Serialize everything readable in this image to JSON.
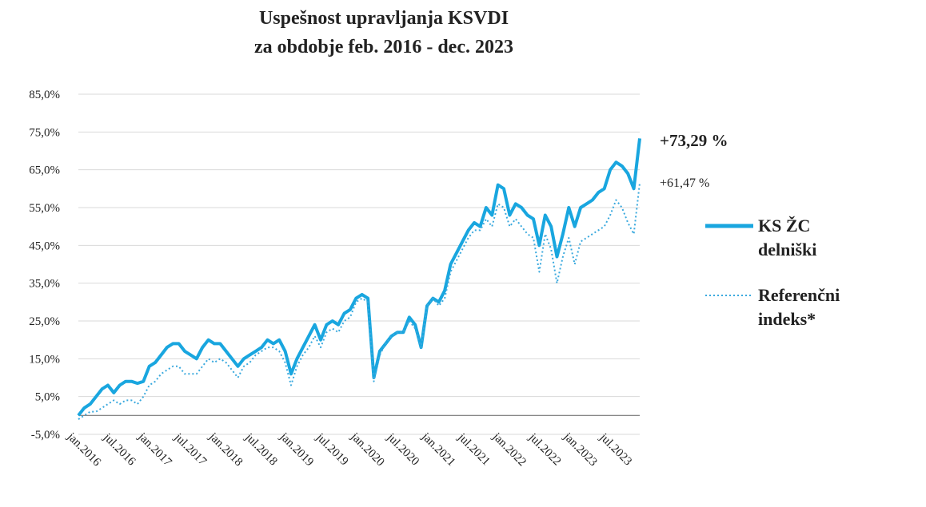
{
  "chart_data": {
    "type": "line",
    "title": [
      "Uspešnost upravljanja KSVDI",
      "za obdobje feb. 2016 - dec. 2023"
    ],
    "categories": [
      "jan.2016",
      null,
      null,
      null,
      null,
      null,
      "jul.2016",
      null,
      null,
      null,
      null,
      null,
      "jan.2017",
      null,
      null,
      null,
      null,
      null,
      "jul.2017",
      null,
      null,
      null,
      null,
      null,
      "jan.2018",
      null,
      null,
      null,
      null,
      null,
      "jul.2018",
      null,
      null,
      null,
      null,
      null,
      "jan.2019",
      null,
      null,
      null,
      null,
      null,
      "jul.2019",
      null,
      null,
      null,
      null,
      null,
      "jan.2020",
      null,
      null,
      null,
      null,
      null,
      "jul.2020",
      null,
      null,
      null,
      null,
      null,
      "jan.2021",
      null,
      null,
      null,
      null,
      null,
      "jul.2021",
      null,
      null,
      null,
      null,
      null,
      "jan.2022",
      null,
      null,
      null,
      null,
      null,
      "jul.2022",
      null,
      null,
      null,
      null,
      null,
      "jan.2023",
      null,
      null,
      null,
      null,
      null,
      "jul.2023",
      null,
      null,
      null,
      null,
      null
    ],
    "series": [
      {
        "name": "KS ŽC delniški",
        "color": "#19a6df",
        "style": "solid",
        "values": [
          0,
          2,
          3,
          5,
          7,
          8,
          6,
          8,
          9,
          9,
          8.5,
          9,
          13,
          14,
          16,
          18,
          19,
          19,
          17,
          16,
          15,
          18,
          20,
          19,
          19,
          17,
          15,
          13,
          15,
          16,
          17,
          18,
          20,
          19,
          20,
          17,
          11,
          15,
          18,
          21,
          24,
          20,
          24,
          25,
          24,
          27,
          28,
          31,
          32,
          31,
          10,
          17,
          19,
          21,
          22,
          22,
          26,
          24,
          18,
          29,
          31,
          30,
          33,
          40,
          43,
          46,
          49,
          51,
          50,
          55,
          53,
          61,
          60,
          53,
          56,
          55,
          53,
          52,
          45,
          53,
          50,
          42,
          48,
          55,
          50,
          55,
          56,
          57,
          59,
          60,
          65,
          67,
          66,
          64,
          60,
          73.29
        ]
      },
      {
        "name": "Referenčni indeks*",
        "color": "#3aa9de",
        "style": "dotted",
        "values": [
          -1,
          0,
          1,
          1,
          2,
          3,
          4,
          3,
          4,
          4,
          3,
          5,
          8,
          9,
          11,
          12,
          13,
          13,
          11,
          11,
          11,
          13,
          15,
          14,
          15,
          14,
          12,
          10,
          13,
          14,
          16,
          17,
          18,
          18,
          17,
          14,
          8,
          13,
          16,
          18,
          21,
          18,
          22,
          23,
          22,
          25,
          26,
          30,
          31,
          30,
          9,
          16,
          19,
          21,
          22,
          22,
          25,
          23,
          18,
          29,
          31,
          29,
          31,
          38,
          41,
          44,
          47,
          49,
          49,
          52,
          50,
          56,
          55,
          50,
          52,
          50,
          48,
          47,
          38,
          48,
          44,
          35,
          42,
          47,
          40,
          46,
          47,
          48,
          49,
          50,
          53,
          57,
          55,
          51,
          48,
          61.47
        ]
      }
    ],
    "annotations": [
      "+73,29 %",
      "+61,47 %"
    ],
    "ylim": [
      -5,
      85
    ],
    "yticks": [
      {
        "value": -5,
        "label": "-5,0%"
      },
      {
        "value": 5,
        "label": "5,0%"
      },
      {
        "value": 15,
        "label": "15,0%"
      },
      {
        "value": 25,
        "label": "25,0%"
      },
      {
        "value": 35,
        "label": "35,0%"
      },
      {
        "value": 45,
        "label": "45,0%"
      },
      {
        "value": 55,
        "label": "55,0%"
      },
      {
        "value": 65,
        "label": "65,0%"
      },
      {
        "value": 75,
        "label": "75,0%"
      },
      {
        "value": 85,
        "label": "85,0%"
      }
    ],
    "grid": true,
    "legend": "right"
  }
}
